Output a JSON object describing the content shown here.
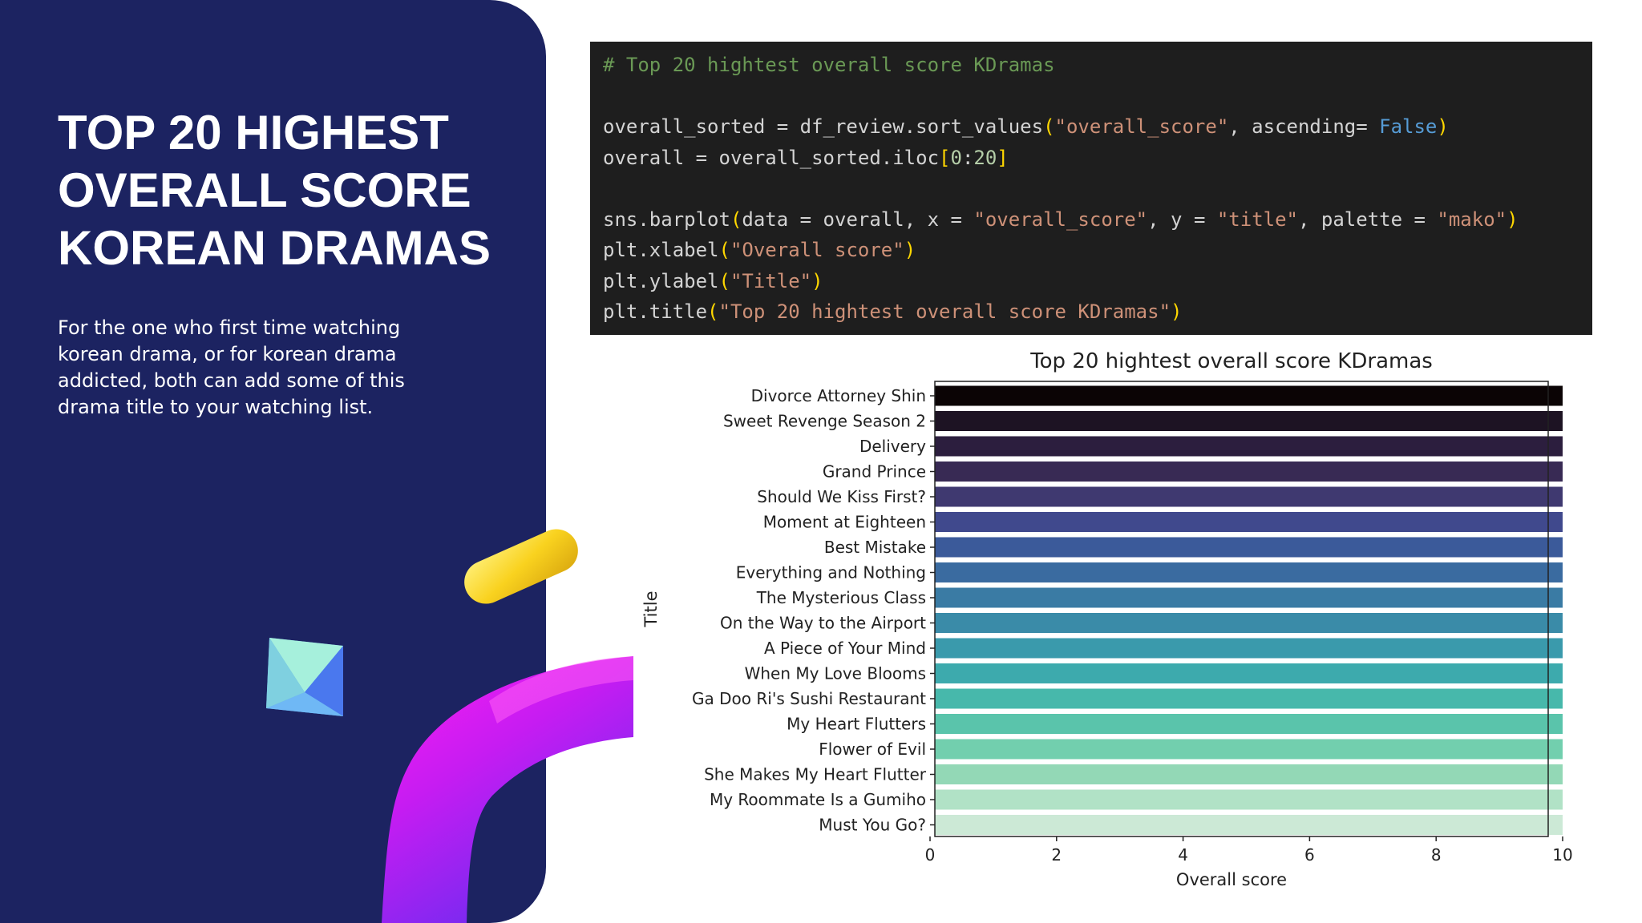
{
  "slide": {
    "title": "TOP 20 HIGHEST OVERALL SCORE KOREAN DRAMAS",
    "description": "For the one who first time watching korean drama, or for korean drama addicted, both can add some of this drama title to your watching list."
  },
  "code": {
    "comment": "# Top 20 hightest overall score KDramas",
    "line1_a": "overall_sorted = df_review.sort_values",
    "line1_str": "\"overall_score\"",
    "line1_b": ", ascending= ",
    "line1_kw": "False",
    "line2_a": "overall = overall_sorted.iloc",
    "line2_n1": "0",
    "line2_n2": "20",
    "line3_a": "sns.barplot",
    "line3_b": "data = overall, x = ",
    "line3_s1": "\"overall_score\"",
    "line3_c": ", y = ",
    "line3_s2": "\"title\"",
    "line3_d": ", palette = ",
    "line3_s3": "\"mako\"",
    "line4_a": "plt.xlabel",
    "line4_s": "\"Overall score\"",
    "line5_a": "plt.ylabel",
    "line5_s": "\"Title\"",
    "line6_a": "plt.title",
    "line6_s": "\"Top 20 hightest overall score KDramas\""
  },
  "colors": {
    "panel": "#1c2361",
    "code_bg": "#1e1e1e"
  },
  "chart_data": {
    "type": "bar",
    "orientation": "horizontal",
    "title": "Top 20 hightest overall score KDramas",
    "xlabel": "Overall score",
    "ylabel": "Title",
    "xlim": [
      0,
      10.5
    ],
    "xticks": [
      0,
      2,
      4,
      6,
      8,
      10
    ],
    "grid": false,
    "categories": [
      "Divorce Attorney Shin",
      "Sweet Revenge Season 2",
      "Delivery",
      "Grand Prince",
      "Should We Kiss First?",
      "Moment at Eighteen",
      "Best Mistake",
      "Everything and Nothing",
      "The Mysterious Class",
      "On the Way to the Airport",
      "A Piece of Your Mind",
      "When My Love Blooms",
      "Ga Doo Ri's Sushi Restaurant",
      "My Heart Flutters",
      "Flower of Evil",
      "She Makes My Heart Flutter",
      "My Roommate Is a Gumiho",
      "Must You Go?"
    ],
    "values": [
      10,
      10,
      10,
      10,
      10,
      10,
      10,
      10,
      10,
      10,
      10,
      10,
      10,
      10,
      10,
      10,
      10,
      10
    ],
    "palette": [
      "#0b0405",
      "#1d1323",
      "#2c1e3e",
      "#382a54",
      "#3f3970",
      "#40498d",
      "#3b5a9a",
      "#3a6ba0",
      "#3a7ba4",
      "#3a8ba8",
      "#3a9aac",
      "#3daaad",
      "#47b8ab",
      "#5ac4ab",
      "#72cfae",
      "#93d8b6",
      "#b1e2c6",
      "#cce9d6"
    ]
  }
}
